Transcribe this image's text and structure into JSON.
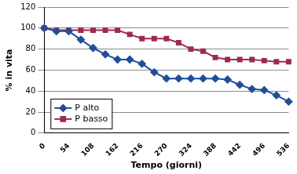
{
  "chart_data": {
    "type": "line",
    "x_label": "Tempo (giorni)",
    "y_label": "% in vita",
    "categories": [
      "0",
      null,
      "54",
      null,
      "108",
      null,
      "162",
      null,
      "216",
      null,
      "270",
      null,
      "324",
      null,
      "388",
      null,
      "442",
      null,
      "496",
      null,
      "536"
    ],
    "series": [
      {
        "name": "P alto",
        "color": "#1f4e9c",
        "marker": "diamond",
        "line_style": "solid",
        "values": [
          100,
          97,
          97,
          89,
          81,
          75,
          70,
          70,
          66,
          58,
          52,
          52,
          52,
          52,
          52,
          51,
          46,
          42,
          41,
          36,
          30
        ]
      },
      {
        "name": "P basso",
        "color": "#9e2a4a",
        "marker": "square",
        "line_style": "solid",
        "values": [
          100,
          98,
          98,
          98,
          98,
          98,
          98,
          94,
          90,
          90,
          90,
          86,
          80,
          78,
          72,
          70,
          70,
          70,
          69,
          68,
          68
        ]
      }
    ],
    "ylim": [
      0,
      120
    ],
    "yticks": [
      0,
      20,
      40,
      60,
      80,
      100,
      120
    ],
    "grid": true,
    "legend": "lower left"
  }
}
